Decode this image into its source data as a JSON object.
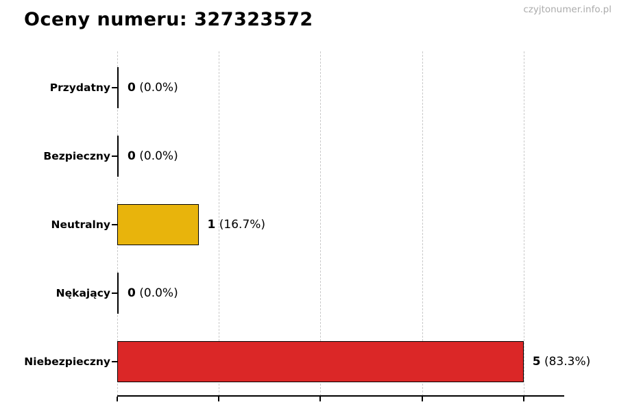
{
  "header": {
    "title": "Oceny numeru: 327323572",
    "watermark": "czyjtonumer.info.pl"
  },
  "colors": {
    "neutral_bar": "#E8B40C",
    "danger_bar": "#DB2727",
    "bar_border": "#000000",
    "zero_bar_line": "#000000",
    "gridline": "#c9c9c9",
    "axis": "#000000",
    "title_text": "#000000",
    "watermark_text": "#ababab",
    "background": "#ffffff"
  },
  "chart_data": {
    "type": "bar",
    "orientation": "horizontal",
    "title": "Oceny numeru: 327323572",
    "xlabel": "",
    "ylabel": "",
    "categories": [
      "Przydatny",
      "Bezpieczny",
      "Neutralny",
      "Nękający",
      "Niebezpieczny"
    ],
    "values": [
      0,
      0,
      1,
      0,
      5
    ],
    "percentages": [
      0.0,
      0.0,
      16.7,
      0.0,
      83.3
    ],
    "count_labels": [
      "0",
      "0",
      "1",
      "0",
      "5"
    ],
    "pct_labels": [
      "(0.0%)",
      "(0.0%)",
      "(16.7%)",
      "(0.0%)",
      "(83.3%)"
    ],
    "bar_colors": [
      null,
      null,
      "#E8B40C",
      null,
      "#DB2727"
    ],
    "xlim": [
      0,
      5.5
    ],
    "xticks": [
      0,
      1.25,
      2.5,
      3.75,
      5
    ],
    "xtick_labels": [
      "",
      "",
      "",
      "",
      ""
    ],
    "grid": "vertical-dashed",
    "legend": "none"
  }
}
